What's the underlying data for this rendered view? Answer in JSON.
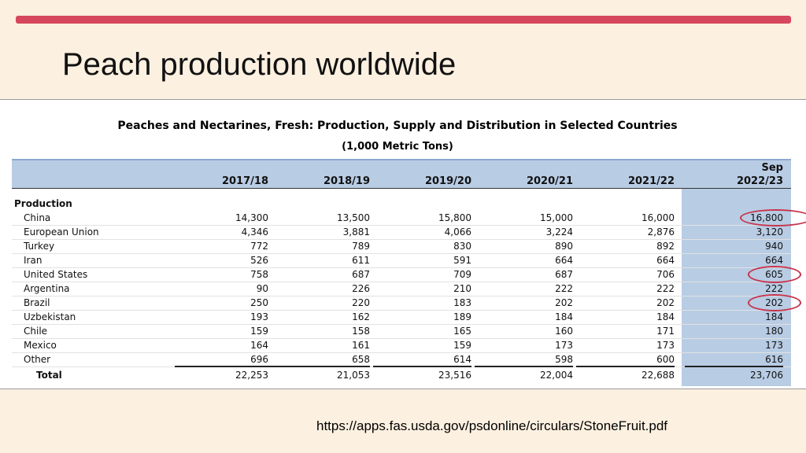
{
  "header": {
    "title": "Peach production worldwide"
  },
  "table": {
    "title": "Peaches and Nectarines, Fresh:  Production, Supply and Distribution in Selected Countries",
    "subtitle": "(1,000 Metric Tons)",
    "last_column_note": "Sep",
    "columns": [
      "2017/18",
      "2018/19",
      "2019/20",
      "2020/21",
      "2021/22",
      "2022/23"
    ],
    "section": "Production",
    "rows": [
      {
        "label": "China",
        "values": [
          "14,300",
          "13,500",
          "15,800",
          "15,000",
          "16,000",
          "16,800"
        ]
      },
      {
        "label": "European Union",
        "values": [
          "4,346",
          "3,881",
          "4,066",
          "3,224",
          "2,876",
          "3,120"
        ]
      },
      {
        "label": "Turkey",
        "values": [
          "772",
          "789",
          "830",
          "890",
          "892",
          "940"
        ]
      },
      {
        "label": "Iran",
        "values": [
          "526",
          "611",
          "591",
          "664",
          "664",
          "664"
        ]
      },
      {
        "label": "United States",
        "values": [
          "758",
          "687",
          "709",
          "687",
          "706",
          "605"
        ]
      },
      {
        "label": "Argentina",
        "values": [
          "90",
          "226",
          "210",
          "222",
          "222",
          "222"
        ]
      },
      {
        "label": "Brazil",
        "values": [
          "250",
          "220",
          "183",
          "202",
          "202",
          "202"
        ]
      },
      {
        "label": "Uzbekistan",
        "values": [
          "193",
          "162",
          "189",
          "184",
          "184",
          "184"
        ]
      },
      {
        "label": "Chile",
        "values": [
          "159",
          "158",
          "165",
          "160",
          "171",
          "180"
        ]
      },
      {
        "label": "Mexico",
        "values": [
          "164",
          "161",
          "159",
          "173",
          "173",
          "173"
        ]
      },
      {
        "label": "Other",
        "values": [
          "696",
          "658",
          "614",
          "598",
          "600",
          "616"
        ]
      }
    ],
    "total": {
      "label": "Total",
      "values": [
        "22,253",
        "21,053",
        "23,516",
        "22,004",
        "22,688",
        "23,706"
      ]
    }
  },
  "source": "https://apps.fas.usda.gov/psdonline/circulars/StoneFruit.pdf"
}
